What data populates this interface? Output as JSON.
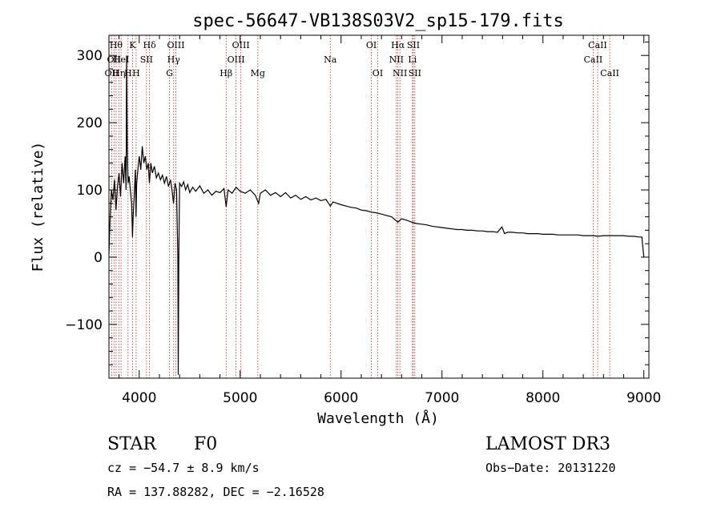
{
  "chart_data": {
    "type": "line",
    "title": "spec-56647-VB138S03V2_sp15-179.fits",
    "xlabel": "Wavelength (Å)",
    "ylabel": "Flux (relative)",
    "xlim": [
      3700,
      9050
    ],
    "ylim": [
      -180,
      330
    ],
    "xticks": [
      4000,
      5000,
      6000,
      7000,
      8000,
      9000
    ],
    "yticks": [
      -100,
      0,
      100,
      200,
      300
    ],
    "series": [
      {
        "name": "flux",
        "points": [
          [
            3700,
            5
          ],
          [
            3712,
            60
          ],
          [
            3725,
            100
          ],
          [
            3740,
            85
          ],
          [
            3755,
            115
          ],
          [
            3770,
            70
          ],
          [
            3785,
            105
          ],
          [
            3800,
            125
          ],
          [
            3815,
            90
          ],
          [
            3830,
            140
          ],
          [
            3845,
            110
          ],
          [
            3860,
            150
          ],
          [
            3870,
            100
          ],
          [
            3875,
            300
          ],
          [
            3882,
            160
          ],
          [
            3890,
            110
          ],
          [
            3900,
            120
          ],
          [
            3915,
            95
          ],
          [
            3925,
            80
          ],
          [
            3933,
            30
          ],
          [
            3940,
            60
          ],
          [
            3950,
            90
          ],
          [
            3962,
            130
          ],
          [
            3968,
            60
          ],
          [
            3975,
            110
          ],
          [
            3990,
            135
          ],
          [
            4000,
            150
          ],
          [
            4015,
            130
          ],
          [
            4030,
            165
          ],
          [
            4045,
            140
          ],
          [
            4060,
            150
          ],
          [
            4075,
            130
          ],
          [
            4090,
            140
          ],
          [
            4101,
            110
          ],
          [
            4115,
            140
          ],
          [
            4130,
            125
          ],
          [
            4150,
            135
          ],
          [
            4170,
            118
          ],
          [
            4190,
            125
          ],
          [
            4210,
            115
          ],
          [
            4230,
            122
          ],
          [
            4250,
            110
          ],
          [
            4270,
            120
          ],
          [
            4290,
            105
          ],
          [
            4310,
            115
          ],
          [
            4325,
            100
          ],
          [
            4340,
            80
          ],
          [
            4355,
            110
          ],
          [
            4370,
            100
          ],
          [
            4383,
            0
          ],
          [
            4387,
            -175
          ],
          [
            4392,
            0
          ],
          [
            4400,
            110
          ],
          [
            4420,
            105
          ],
          [
            4440,
            112
          ],
          [
            4460,
            100
          ],
          [
            4480,
            108
          ],
          [
            4500,
            96
          ],
          [
            4530,
            104
          ],
          [
            4560,
            98
          ],
          [
            4600,
            106
          ],
          [
            4640,
            95
          ],
          [
            4680,
            100
          ],
          [
            4720,
            92
          ],
          [
            4760,
            98
          ],
          [
            4800,
            96
          ],
          [
            4840,
            102
          ],
          [
            4861,
            75
          ],
          [
            4880,
            100
          ],
          [
            4920,
            95
          ],
          [
            4960,
            104
          ],
          [
            5000,
            98
          ],
          [
            5050,
            95
          ],
          [
            5100,
            100
          ],
          [
            5150,
            92
          ],
          [
            5183,
            80
          ],
          [
            5200,
            95
          ],
          [
            5250,
            100
          ],
          [
            5300,
            92
          ],
          [
            5350,
            96
          ],
          [
            5400,
            90
          ],
          [
            5450,
            96
          ],
          [
            5500,
            88
          ],
          [
            5550,
            92
          ],
          [
            5600,
            86
          ],
          [
            5650,
            90
          ],
          [
            5700,
            85
          ],
          [
            5750,
            88
          ],
          [
            5800,
            84
          ],
          [
            5850,
            86
          ],
          [
            5893,
            76
          ],
          [
            5920,
            82
          ],
          [
            5960,
            80
          ],
          [
            6000,
            78
          ],
          [
            6050,
            76
          ],
          [
            6100,
            74
          ],
          [
            6150,
            73
          ],
          [
            6200,
            70
          ],
          [
            6250,
            69
          ],
          [
            6300,
            67
          ],
          [
            6350,
            66
          ],
          [
            6400,
            64
          ],
          [
            6450,
            62
          ],
          [
            6500,
            60
          ],
          [
            6563,
            52
          ],
          [
            6600,
            57
          ],
          [
            6650,
            55
          ],
          [
            6700,
            52
          ],
          [
            6750,
            50
          ],
          [
            6800,
            49
          ],
          [
            6850,
            48
          ],
          [
            6900,
            46
          ],
          [
            6950,
            45
          ],
          [
            7000,
            44
          ],
          [
            7050,
            43
          ],
          [
            7100,
            42
          ],
          [
            7150,
            41
          ],
          [
            7200,
            41
          ],
          [
            7250,
            40
          ],
          [
            7300,
            40
          ],
          [
            7350,
            39
          ],
          [
            7400,
            39
          ],
          [
            7450,
            38
          ],
          [
            7500,
            38
          ],
          [
            7550,
            37
          ],
          [
            7594,
            45
          ],
          [
            7620,
            35
          ],
          [
            7650,
            37
          ],
          [
            7700,
            37
          ],
          [
            7750,
            36
          ],
          [
            7800,
            36
          ],
          [
            7850,
            35
          ],
          [
            7900,
            35
          ],
          [
            7950,
            35
          ],
          [
            8000,
            34
          ],
          [
            8050,
            34
          ],
          [
            8100,
            34
          ],
          [
            8150,
            33
          ],
          [
            8200,
            33
          ],
          [
            8250,
            33
          ],
          [
            8300,
            33
          ],
          [
            8350,
            33
          ],
          [
            8400,
            32
          ],
          [
            8450,
            32
          ],
          [
            8500,
            32
          ],
          [
            8542,
            31
          ],
          [
            8600,
            32
          ],
          [
            8650,
            32
          ],
          [
            8700,
            32
          ],
          [
            8750,
            32
          ],
          [
            8800,
            32
          ],
          [
            8850,
            31
          ],
          [
            8900,
            31
          ],
          [
            8950,
            30
          ],
          [
            8980,
            30
          ],
          [
            9000,
            0
          ]
        ]
      }
    ],
    "lines": [
      {
        "wavelength": 3727,
        "label": "OII",
        "row": 2
      },
      {
        "wavelength": 3750,
        "label": "OII",
        "row": 1
      },
      {
        "wavelength": 3771,
        "label": "Hθ",
        "row": 0
      },
      {
        "wavelength": 3798,
        "label": "Hη",
        "row": 2
      },
      {
        "wavelength": 3820,
        "label": "HeI",
        "row": 1
      },
      {
        "wavelength": 3889,
        "label": "H",
        "row": 2
      },
      {
        "wavelength": 3934,
        "label": "K",
        "row": 0
      },
      {
        "wavelength": 3969,
        "label": "H",
        "row": 2
      },
      {
        "wavelength": 4072,
        "label": "SII",
        "row": 1
      },
      {
        "wavelength": 4102,
        "label": "Hδ",
        "row": 0
      },
      {
        "wavelength": 4300,
        "label": "G",
        "row": 2
      },
      {
        "wavelength": 4341,
        "label": "Hγ",
        "row": 1
      },
      {
        "wavelength": 4363,
        "label": "OIII",
        "row": 0
      },
      {
        "wavelength": 4861,
        "label": "Hβ",
        "row": 2
      },
      {
        "wavelength": 4959,
        "label": "OIII",
        "row": 1
      },
      {
        "wavelength": 5007,
        "label": "OIII",
        "row": 0
      },
      {
        "wavelength": 5175,
        "label": "Mg",
        "row": 2
      },
      {
        "wavelength": 5893,
        "label": "Na",
        "row": 1
      },
      {
        "wavelength": 6300,
        "label": "OI",
        "row": 0
      },
      {
        "wavelength": 6363,
        "label": "OI",
        "row": 2
      },
      {
        "wavelength": 6548,
        "label": "NII",
        "row": 1
      },
      {
        "wavelength": 6563,
        "label": "Hα",
        "row": 0
      },
      {
        "wavelength": 6583,
        "label": "NII",
        "row": 2
      },
      {
        "wavelength": 6707,
        "label": "Li",
        "row": 1
      },
      {
        "wavelength": 6716,
        "label": "SII",
        "row": 0
      },
      {
        "wavelength": 6731,
        "label": "SII",
        "row": 2
      },
      {
        "wavelength": 8498,
        "label": "CaII",
        "row": 1
      },
      {
        "wavelength": 8542,
        "label": "CaII",
        "row": 0
      },
      {
        "wavelength": 8662,
        "label": "CaII",
        "row": 2
      }
    ]
  },
  "footer": {
    "class_text": "STAR",
    "subclass_text": "F0",
    "survey": "LAMOST DR3",
    "cz": "cz = −54.7 ± 8.9 km/s",
    "obs_date": "Obs−Date: 20131220",
    "coords": "RA = 137.88282, DEC =  −2.16528"
  },
  "colors": {
    "line_marker": "#cc2222",
    "spectrum": "#000000"
  }
}
